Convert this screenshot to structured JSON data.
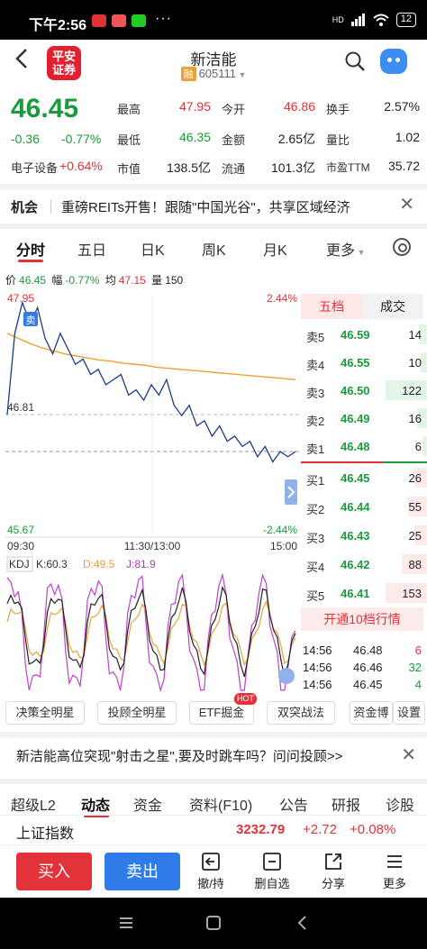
{
  "status": {
    "time": "下午2:56",
    "dots": "···",
    "net": "HD",
    "battery": "12"
  },
  "header": {
    "logo": "平安\n证券",
    "name": "新洁能",
    "tag": "融",
    "code": "605111"
  },
  "quote": {
    "price": "46.45",
    "change": "-0.36",
    "change_pct": "-0.77%",
    "industry": "电子设备",
    "industry_chg": "+0.64%",
    "stats": [
      {
        "label": "最高",
        "value": "47.95",
        "color": "red"
      },
      {
        "label": "今开",
        "value": "46.86",
        "color": "red"
      },
      {
        "label": "换手",
        "value": "2.57%",
        "color": "none"
      },
      {
        "label": "最低",
        "value": "46.35",
        "color": "green"
      },
      {
        "label": "金额",
        "value": "2.65亿",
        "color": "none"
      },
      {
        "label": "量比",
        "value": "1.02",
        "color": "none"
      },
      {
        "label": "市值",
        "value": "138.5亿",
        "color": "none"
      },
      {
        "label": "流通",
        "value": "101.3亿",
        "color": "none"
      },
      {
        "label": "市盈TTM",
        "value": "35.72",
        "color": "none"
      }
    ]
  },
  "opportunity": {
    "tag": "机会",
    "text": "重磅REITs开售！跟随\"中国光谷\"，共享区域经济",
    "close": "✕"
  },
  "tabs": [
    "分时",
    "五日",
    "日K",
    "周K",
    "月K",
    "更多"
  ],
  "chart_info": {
    "price_label": "价",
    "price": "46.45",
    "range_label": "幅",
    "range": "-0.77%",
    "avg_label": "均",
    "avg": "47.15",
    "vol_label": "量",
    "vol": "150"
  },
  "chart_data": {
    "type": "line",
    "y_top": "47.95",
    "y_mid": "46.81",
    "y_bottom": "45.67",
    "pct_top": "2.44%",
    "pct_bottom": "-2.44%",
    "x_labels": [
      "09:30",
      "11:30/13:00",
      "15:00"
    ],
    "sell_marker": "卖",
    "price_series": [
      46.81,
      47.6,
      47.9,
      47.7,
      47.85,
      47.55,
      47.4,
      47.6,
      47.45,
      47.3,
      47.35,
      47.2,
      47.25,
      47.1,
      47.15,
      47.2,
      47.0,
      47.05,
      46.95,
      47.1,
      47.0,
      47.15,
      46.9,
      46.8,
      46.9,
      46.7,
      46.75,
      46.6,
      46.7,
      46.55,
      46.6,
      46.5,
      46.55,
      46.4,
      46.5,
      46.35,
      46.45,
      46.4,
      46.45
    ],
    "avg_series": [
      47.6,
      47.55,
      47.5,
      47.46,
      47.43,
      47.4,
      47.38,
      47.36,
      47.34,
      47.33,
      47.31,
      47.3,
      47.29,
      47.27,
      47.26,
      47.25,
      47.24,
      47.23,
      47.22,
      47.21,
      47.2,
      47.19,
      47.18,
      47.17,
      47.16,
      47.15
    ]
  },
  "kdj": {
    "label": "KDJ",
    "k_label": "K:60.3",
    "d_label": "D:49.5",
    "j_label": "J:81.9",
    "k": 60.3,
    "d": 49.5,
    "j": 81.9
  },
  "orderbook": {
    "tab1": "五档",
    "tab2": "成交",
    "sells": [
      {
        "label": "卖5",
        "price": "46.59",
        "vol": "14",
        "bar": 0.2
      },
      {
        "label": "卖4",
        "price": "46.55",
        "vol": "10",
        "bar": 0.15
      },
      {
        "label": "卖3",
        "price": "46.50",
        "vol": "122",
        "bar": 1.0
      },
      {
        "label": "卖2",
        "price": "46.49",
        "vol": "16",
        "bar": 0.25
      },
      {
        "label": "卖1",
        "price": "46.48",
        "vol": "6",
        "bar": 0.1
      }
    ],
    "buys": [
      {
        "label": "买1",
        "price": "46.45",
        "vol": "26",
        "bar": 0.3
      },
      {
        "label": "买2",
        "price": "46.44",
        "vol": "55",
        "bar": 0.45
      },
      {
        "label": "买3",
        "price": "46.43",
        "vol": "25",
        "bar": 0.3
      },
      {
        "label": "买4",
        "price": "46.42",
        "vol": "88",
        "bar": 0.6
      },
      {
        "label": "买5",
        "price": "46.41",
        "vol": "153",
        "bar": 1.0
      }
    ],
    "open10": "开通10档行情",
    "ticks": [
      {
        "time": "14:56",
        "price": "46.48",
        "vol": "6",
        "color": "red"
      },
      {
        "time": "14:56",
        "price": "46.46",
        "vol": "32",
        "color": "green"
      },
      {
        "time": "14:56",
        "price": "46.45",
        "vol": "4",
        "color": "green"
      }
    ]
  },
  "chips": [
    "决策全明星",
    "投顾全明星",
    "ETF掘金",
    "双突战法",
    "资金博",
    "设置"
  ],
  "hot": "HOT",
  "news": {
    "text": "新洁能高位突现\"射击之星\",要及时跳车吗？问问投顾>>",
    "close": "✕"
  },
  "bottom_tabs": [
    "超级L2",
    "动态",
    "资金",
    "资料(F10)",
    "公告",
    "研报",
    "诊股"
  ],
  "index": {
    "name": "上证指数",
    "value": "3232.79",
    "change": "+2.72",
    "pct": "+0.08%"
  },
  "actions": {
    "buy": "买入",
    "sell": "卖出",
    "undo": "撤/持",
    "del": "删自选",
    "share": "分享",
    "more": "更多"
  }
}
